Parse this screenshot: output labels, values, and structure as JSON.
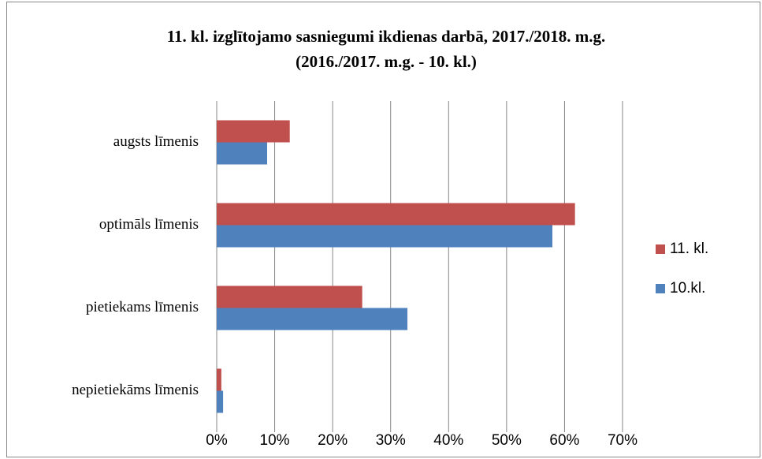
{
  "chart_data": {
    "type": "hbar",
    "title": [
      "11. kl. izglītojamo sasniegumi ikdienas darbā, 2017./2018. m.g.",
      "(2016./2017. m.g. - 10. kl.)"
    ],
    "categories": [
      "augsts līmenis",
      "optimāls līmenis",
      "pietiekams līmenis",
      "nepietiekāms līmenis"
    ],
    "series": [
      {
        "name": "11. kl.",
        "color": "#c0504d",
        "values": [
          12.6,
          61.8,
          25.1,
          0.8
        ]
      },
      {
        "name": "10.kl.",
        "color": "#4f81bd",
        "values": [
          8.7,
          57.9,
          32.9,
          1.1
        ]
      }
    ],
    "xlim": [
      0,
      70
    ],
    "xticks": [
      {
        "value": 0,
        "label": "0%"
      },
      {
        "value": 10,
        "label": "10%"
      },
      {
        "value": 20,
        "label": "20%"
      },
      {
        "value": 30,
        "label": "30%"
      },
      {
        "value": 40,
        "label": "40%"
      },
      {
        "value": 50,
        "label": "50%"
      },
      {
        "value": 60,
        "label": "60%"
      },
      {
        "value": 70,
        "label": "70%"
      }
    ],
    "grid": true,
    "legend": "right"
  }
}
